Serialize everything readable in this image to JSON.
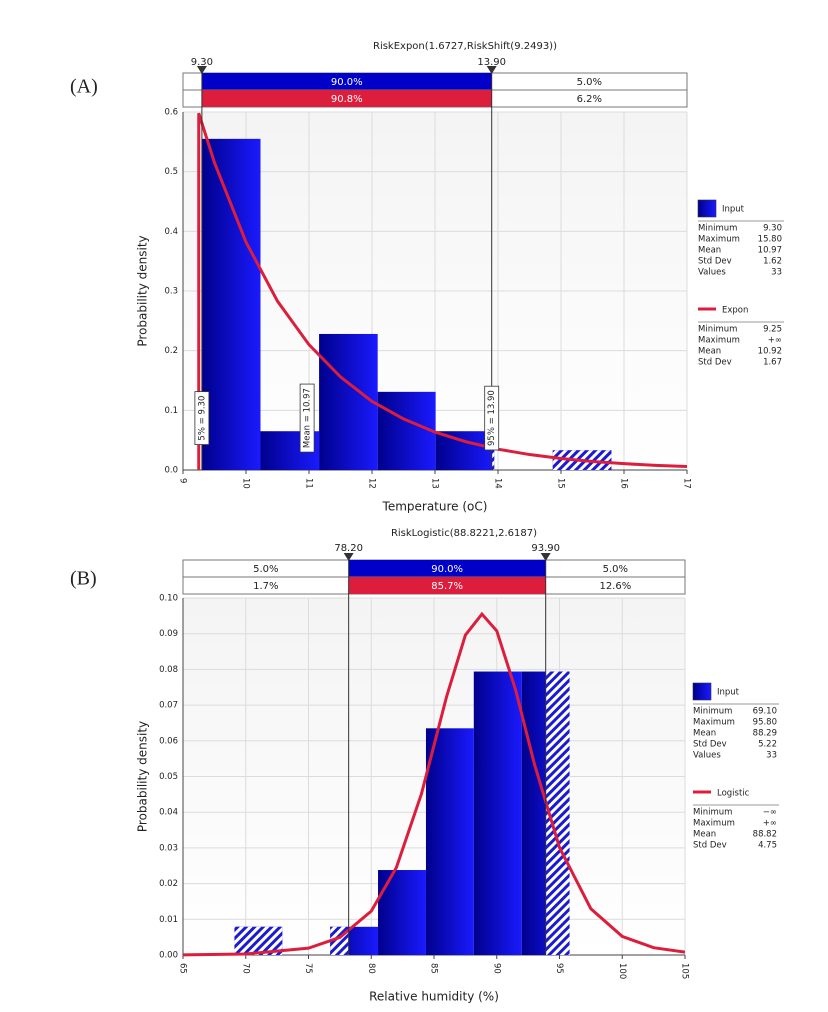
{
  "chart_data": [
    {
      "type": "histogram",
      "panel_label": "(A)",
      "title": "RiskExpon(1.6727,RiskShift(9.2493))",
      "x_label": "Temperature (oC)",
      "y_label": "Probability density",
      "bins": [
        9.3,
        10.23,
        11.16,
        12.09,
        13.01,
        13.94,
        14.87,
        15.8
      ],
      "series": [
        {
          "name": "Input",
          "color": "#0000c8",
          "values": [
            0.555,
            0.065,
            0.228,
            0.131,
            0.065,
            0,
            0.033
          ],
          "stats": [
            [
              "Minimum",
              "9.30"
            ],
            [
              "Maximum",
              "15.80"
            ],
            [
              "Mean",
              "10.97"
            ],
            [
              "Std Dev",
              "1.62"
            ],
            [
              "Values",
              "33"
            ]
          ]
        },
        {
          "name": "Expon",
          "color": "#dc1e3c",
          "type": "line",
          "x": [
            9.25,
            9.25,
            9.5,
            10,
            10.5,
            11,
            11.5,
            12,
            12.5,
            13,
            13.5,
            14,
            14.5,
            15,
            15.5,
            16,
            16.5,
            17
          ],
          "values": [
            0,
            0.598,
            0.515,
            0.382,
            0.283,
            0.21,
            0.156,
            0.115,
            0.0856,
            0.0635,
            0.0471,
            0.0349,
            0.0259,
            0.0192,
            0.0142,
            0.0106,
            0.0078,
            0.0058
          ],
          "stats": [
            [
              "Minimum",
              "9.25"
            ],
            [
              "Maximum",
              "+∞"
            ],
            [
              "Mean",
              "10.92"
            ],
            [
              "Std Dev",
              "1.67"
            ]
          ]
        }
      ],
      "xlim": [
        9,
        17
      ],
      "xticks": [
        9,
        10,
        11,
        12,
        13,
        14,
        15,
        16,
        17
      ],
      "ylim": [
        0,
        0.6
      ],
      "yticks": [
        {
          "value": 0,
          "label": "0.0"
        },
        0.1,
        0.2,
        0.3,
        0.4,
        0.5,
        0.6
      ],
      "grid": true,
      "delimiters": [
        {
          "value": 9.3,
          "label": "9.30"
        },
        {
          "value": 13.9,
          "label": "13.90"
        }
      ],
      "band_labels": [
        [
          null,
          "90.0%",
          "5.0%"
        ],
        [
          null,
          "90.8%",
          "6.2%"
        ]
      ],
      "markers": [
        {
          "x": 9.3,
          "label": "5% = 9.30"
        },
        {
          "x": 10.97,
          "label": "Mean = 10.97"
        },
        {
          "x": 13.9,
          "label": "95% = 13.90"
        }
      ]
    },
    {
      "type": "histogram",
      "panel_label": "(B)",
      "title": "RiskLogistic(88.8221,2.6187)",
      "x_label": "Relative humidity (%)",
      "y_label": "Probability density",
      "bins": [
        69.1,
        72.91,
        76.73,
        80.54,
        84.36,
        88.17,
        91.99,
        95.8
      ],
      "series": [
        {
          "name": "Input",
          "color": "#0000c8",
          "values": [
            0.0079,
            0,
            0.0079,
            0.0238,
            0.0635,
            0.0794,
            0.0794
          ],
          "stats": [
            [
              "Minimum",
              "69.10"
            ],
            [
              "Maximum",
              "95.80"
            ],
            [
              "Mean",
              "88.29"
            ],
            [
              "Std Dev",
              "5.22"
            ],
            [
              "Values",
              "33"
            ]
          ]
        },
        {
          "name": "Logistic",
          "color": "#dc1e3c",
          "type": "line",
          "x": [
            65,
            70,
            75,
            77.5,
            80,
            82,
            84,
            86,
            87.5,
            88.82,
            90,
            91.5,
            93,
            95,
            97.5,
            100,
            102.5,
            105
          ],
          "values": [
            4e-05,
            0.00029,
            0.00193,
            0.00493,
            0.01228,
            0.02447,
            0.04514,
            0.07234,
            0.0896,
            0.0955,
            0.0908,
            0.0743,
            0.0535,
            0.0301,
            0.01294,
            0.0052,
            0.00205,
            0.00079
          ],
          "stats": [
            [
              "Minimum",
              "−∞"
            ],
            [
              "Maximum",
              "+∞"
            ],
            [
              "Mean",
              "88.82"
            ],
            [
              "Std Dev",
              "4.75"
            ]
          ]
        }
      ],
      "xlim": [
        65,
        105
      ],
      "xticks": [
        65,
        70,
        75,
        80,
        85,
        90,
        95,
        100,
        105
      ],
      "ylim": [
        0,
        0.1
      ],
      "yticks": [
        {
          "value": 0,
          "label": "0.00"
        },
        {
          "value": 0.01,
          "label": "0.01"
        },
        {
          "value": 0.02,
          "label": "0.02"
        },
        {
          "value": 0.03,
          "label": "0.03"
        },
        {
          "value": 0.04,
          "label": "0.04"
        },
        {
          "value": 0.05,
          "label": "0.05"
        },
        {
          "value": 0.06,
          "label": "0.06"
        },
        {
          "value": 0.07,
          "label": "0.07"
        },
        {
          "value": 0.08,
          "label": "0.08"
        },
        {
          "value": 0.09,
          "label": "0.09"
        },
        {
          "value": 0.1,
          "label": "0.10"
        }
      ],
      "grid": true,
      "delimiters": [
        {
          "value": 78.2,
          "label": "78.20"
        },
        {
          "value": 93.9,
          "label": "93.90"
        }
      ],
      "band_labels": [
        [
          "5.0%",
          "90.0%",
          "5.0%"
        ],
        [
          "1.7%",
          "85.7%",
          "12.6%"
        ]
      ]
    }
  ]
}
